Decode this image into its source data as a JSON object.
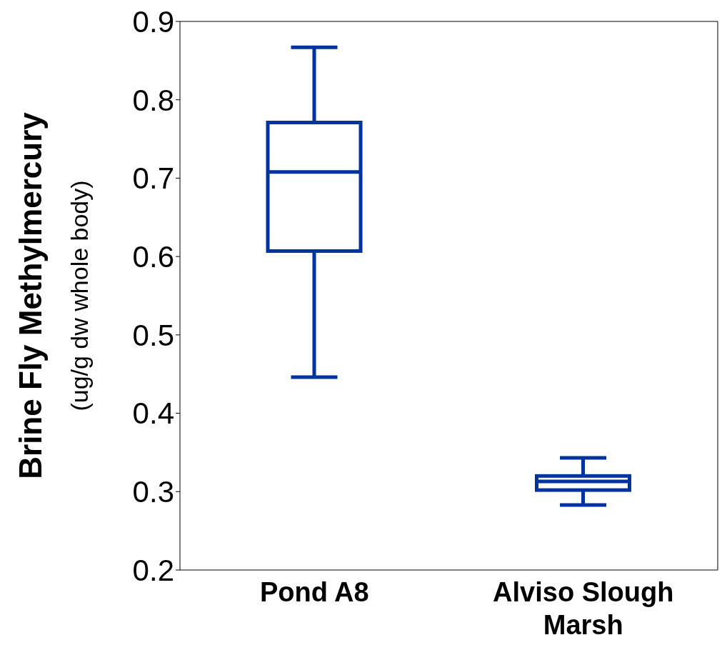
{
  "chart_data": {
    "type": "box",
    "ylabel": "Brine Fly Methylmercury\n(ug/g dw whole body)",
    "categories": [
      "Pond A8",
      "Alviso Slough Marsh"
    ],
    "color": "#0033a0",
    "boxes": [
      {
        "low": 0.446,
        "q1": 0.607,
        "median": 0.708,
        "q3": 0.771,
        "high": 0.867
      },
      {
        "low": 0.283,
        "q1": 0.302,
        "median": 0.313,
        "q3": 0.32,
        "high": 0.343
      }
    ],
    "ylim": [
      0.2,
      0.9
    ],
    "yticks": [
      0.2,
      0.3,
      0.4,
      0.5,
      0.6,
      0.7,
      0.8,
      0.9
    ]
  }
}
